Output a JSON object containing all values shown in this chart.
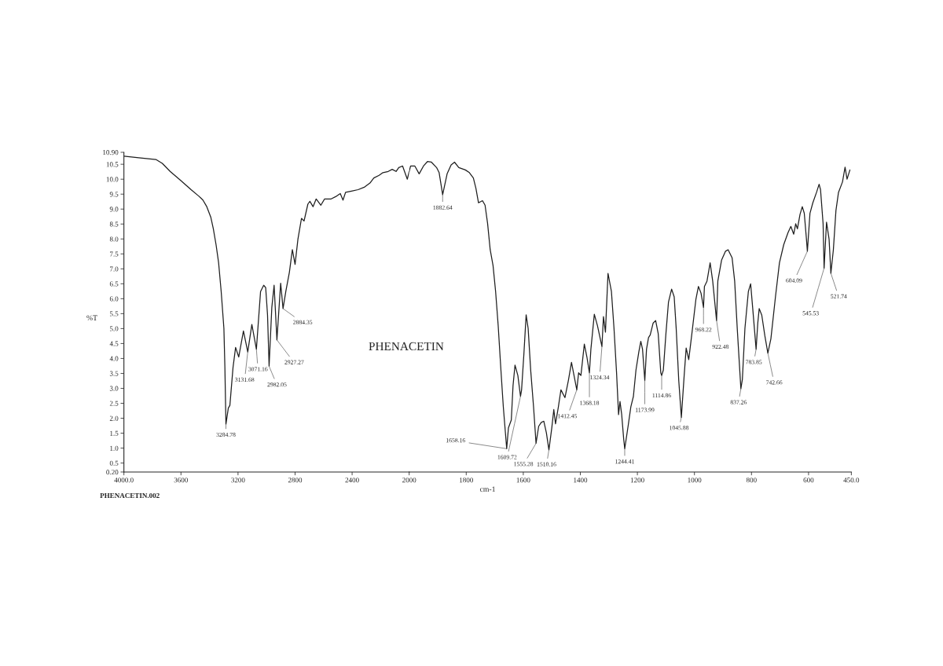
{
  "chart_data": [
    {
      "type": "line",
      "title": "PHENACETIN",
      "ylabel": "%T",
      "color": "#1e1e1e",
      "xlim": [
        4000,
        2000
      ],
      "ylim": [
        0.2,
        10.9
      ],
      "xticks": [
        {
          "value": 4000,
          "label": "4000.0"
        },
        3600,
        3200,
        2800,
        2400,
        2000
      ],
      "yticks": [
        {
          "value": 0.2,
          "label": "0.20"
        },
        0.5,
        {
          "value": 1,
          "label": "1.0"
        },
        1.5,
        {
          "value": 2,
          "label": "2.0"
        },
        2.5,
        {
          "value": 3,
          "label": "3.0"
        },
        3.5,
        {
          "value": 4,
          "label": "4.0"
        },
        4.5,
        {
          "value": 5,
          "label": "5.0"
        },
        5.5,
        {
          "value": 6,
          "label": "6.0"
        },
        6.5,
        {
          "value": 7,
          "label": "7.0"
        },
        7.5,
        {
          "value": 8,
          "label": "8.0"
        },
        8.5,
        {
          "value": 9,
          "label": "9.0"
        },
        9.5,
        {
          "value": 10,
          "label": "10.0"
        },
        10.5,
        {
          "value": 10.9,
          "label": "10.90"
        }
      ],
      "x": [
        3998,
        3896,
        3776,
        3731,
        3676,
        3602,
        3529,
        3474,
        3446,
        3419,
        3391,
        3373,
        3354,
        3336,
        3318,
        3299,
        3292,
        3284.78,
        3268,
        3257,
        3235,
        3217,
        3195,
        3162,
        3131.68,
        3103,
        3071.16,
        3042,
        3020,
        3006,
        2993,
        2982.05,
        2963,
        2947,
        2927.27,
        2901,
        2884.35,
        2864,
        2840,
        2819,
        2800,
        2780,
        2755,
        2737,
        2710,
        2696,
        2674,
        2652,
        2619,
        2593,
        2547,
        2510,
        2483,
        2464,
        2446,
        2405,
        2358,
        2312,
        2275,
        2248,
        2211,
        2184,
        2147,
        2119,
        2092,
        2073,
        2046,
        2013,
        2000
      ],
      "values": [
        10.77,
        10.72,
        10.66,
        10.53,
        10.26,
        9.96,
        9.65,
        9.43,
        9.3,
        9.08,
        8.73,
        8.34,
        7.81,
        7.2,
        6.24,
        5.01,
        3.7,
        1.8,
        2.34,
        2.43,
        3.7,
        4.37,
        4.05,
        4.92,
        4.22,
        5.14,
        4.31,
        6.24,
        6.45,
        6.37,
        5.45,
        3.74,
        5.71,
        6.45,
        4.62,
        6.52,
        5.67,
        6.27,
        6.88,
        7.64,
        7.15,
        7.99,
        8.69,
        8.6,
        9.17,
        9.26,
        9.08,
        9.34,
        9.13,
        9.34,
        9.34,
        9.43,
        9.52,
        9.3,
        9.56,
        9.6,
        9.65,
        9.74,
        9.87,
        10.04,
        10.13,
        10.22,
        10.26,
        10.33,
        10.26,
        10.39,
        10.44,
        10.0,
        10.26
      ],
      "annotations": [
        {
          "text": "3284.78",
          "x": 3284.78,
          "y": 1.8
        },
        {
          "text": "3131.68",
          "x": 3131.68,
          "y": 4.22
        },
        {
          "text": "3071.16",
          "x": 3071.16,
          "y": 4.31
        },
        {
          "text": "2982.05",
          "x": 2982.05,
          "y": 3.74
        },
        {
          "text": "2927.27",
          "x": 2927.27,
          "y": 4.62
        },
        {
          "text": "2884.35",
          "x": 2884.35,
          "y": 5.67
        },
        "PHENACETIN.002"
      ]
    },
    {
      "type": "line",
      "xlabel": "cm-1",
      "color": "#1e1e1e",
      "tick_labels": "x",
      "xlim": [
        2000,
        450
      ],
      "ylim": [
        0.2,
        10.9
      ],
      "xticks": [
        1800,
        1600,
        1400,
        1200,
        1000,
        800,
        600,
        {
          "value": 450,
          "label": "450.0"
        }
      ],
      "x": [
        2000,
        1995,
        1980,
        1965,
        1950,
        1936,
        1922,
        1904,
        1895,
        1882.64,
        1867,
        1853,
        1841,
        1826,
        1803,
        1789,
        1775,
        1766,
        1757,
        1743,
        1734,
        1725,
        1716,
        1706,
        1697,
        1688,
        1679,
        1670,
        1658.16,
        1652,
        1642,
        1636,
        1629,
        1619,
        1609.72,
        1606,
        1598,
        1590,
        1583,
        1574,
        1564,
        1555.28,
        1546,
        1537,
        1528,
        1519,
        1510.16,
        1500,
        1493,
        1487,
        1477,
        1468,
        1454,
        1442,
        1431,
        1412.45,
        1406,
        1398,
        1386,
        1377,
        1368.18,
        1363,
        1351,
        1340,
        1324.34,
        1319,
        1312,
        1303,
        1291,
        1282,
        1273,
        1266,
        1261,
        1255,
        1248,
        1244.41,
        1232,
        1223,
        1214,
        1205,
        1195,
        1188,
        1182,
        1173.99,
        1168,
        1161,
        1155,
        1145,
        1136,
        1127,
        1118,
        1114.86,
        1109,
        1100,
        1091,
        1080,
        1071,
        1064,
        1055,
        1045.88,
        1036,
        1029,
        1020,
        1009,
        995,
        986,
        977,
        968.22,
        965,
        956,
        945,
        936,
        922.48,
        918,
        905,
        891,
        882,
        868,
        859,
        850,
        837.26,
        832,
        823,
        811,
        803,
        796,
        783.85,
        778,
        773,
        764,
        753,
        742.66,
        732,
        716,
        702,
        687,
        672,
        662,
        652,
        645,
        639,
        630,
        622,
        615,
        608,
        604.09,
        595,
        585,
        572,
        563,
        558,
        549,
        545.53,
        537,
        528,
        521.74,
        513,
        504,
        495,
        481,
        472,
        465,
        455
      ],
      "values": [
        10.26,
        10.44,
        10.44,
        10.18,
        10.44,
        10.59,
        10.57,
        10.39,
        10.22,
        9.48,
        10.18,
        10.48,
        10.57,
        10.39,
        10.31,
        10.22,
        10.04,
        9.69,
        9.21,
        9.28,
        9.13,
        8.51,
        7.64,
        7.11,
        6.24,
        5.1,
        3.7,
        2.38,
        0.98,
        1.68,
        1.94,
        3.08,
        3.78,
        3.43,
        2.73,
        2.95,
        4.13,
        5.46,
        5.01,
        3.6,
        2.38,
        1.16,
        1.73,
        1.86,
        1.9,
        1.51,
        0.94,
        1.68,
        2.29,
        1.81,
        2.38,
        2.95,
        2.69,
        3.26,
        3.87,
        2.95,
        3.52,
        3.43,
        4.48,
        4.05,
        3.52,
        4.31,
        5.48,
        5.1,
        4.4,
        5.4,
        4.88,
        6.85,
        6.24,
        5.01,
        3.52,
        2.12,
        2.56,
        2.12,
        1.3,
        0.98,
        1.77,
        2.38,
        2.73,
        3.61,
        4.22,
        4.57,
        4.31,
        3.26,
        4.31,
        4.7,
        4.79,
        5.18,
        5.27,
        4.83,
        3.52,
        3.43,
        3.61,
        4.83,
        5.89,
        6.32,
        6.06,
        5.01,
        3.26,
        2.03,
        3.43,
        4.35,
        3.96,
        4.83,
        5.97,
        6.41,
        6.19,
        5.71,
        6.41,
        6.59,
        7.2,
        6.59,
        5.27,
        6.59,
        7.29,
        7.59,
        7.64,
        7.37,
        6.59,
        5.01,
        2.99,
        3.3,
        5.01,
        6.24,
        6.5,
        5.71,
        4.31,
        5.18,
        5.67,
        5.45,
        4.75,
        4.18,
        4.66,
        6.06,
        7.2,
        7.81,
        8.21,
        8.42,
        8.16,
        8.51,
        8.34,
        8.82,
        9.08,
        8.86,
        8.07,
        7.59,
        8.86,
        9.21,
        9.56,
        9.83,
        9.65,
        8.51,
        7.02,
        8.56,
        7.99,
        6.85,
        7.64,
        8.95,
        9.56,
        9.91,
        10.4,
        10.0,
        10.31
      ],
      "annotations": [
        {
          "text": "1882.64",
          "x": 1882.64,
          "y": 9.48
        },
        {
          "text": "1658.16",
          "x": 1658.16,
          "y": 0.98
        },
        {
          "text": "1609.72",
          "x": 1609.72,
          "y": 2.73
        },
        {
          "text": "1555.28",
          "x": 1555.28,
          "y": 1.16
        },
        {
          "text": "1510.16",
          "x": 1510.16,
          "y": 0.94
        },
        {
          "text": "1412.45",
          "x": 1412.45,
          "y": 2.95
        },
        {
          "text": "1368.18",
          "x": 1368.18,
          "y": 3.52
        },
        {
          "text": "1324.34",
          "x": 1324.34,
          "y": 4.4
        },
        {
          "text": "1244.41",
          "x": 1244.41,
          "y": 0.98
        },
        {
          "text": "1173.99",
          "x": 1173.99,
          "y": 3.26
        },
        {
          "text": "1114.86",
          "x": 1114.86,
          "y": 3.43
        },
        {
          "text": "1045.88",
          "x": 1045.88,
          "y": 2.03
        },
        {
          "text": "968.22",
          "x": 968.22,
          "y": 5.71
        },
        {
          "text": "922.48",
          "x": 922.48,
          "y": 5.27
        },
        {
          "text": "837.26",
          "x": 837.26,
          "y": 2.99
        },
        {
          "text": "783.85",
          "x": 783.85,
          "y": 4.31
        },
        {
          "text": "742.66",
          "x": 742.66,
          "y": 4.18
        },
        {
          "text": "604.09",
          "x": 604.09,
          "y": 7.59
        },
        {
          "text": "545.53",
          "x": 545.53,
          "y": 7.02
        },
        {
          "text": "521.74",
          "x": 521.74,
          "y": 6.85
        }
      ]
    }
  ]
}
